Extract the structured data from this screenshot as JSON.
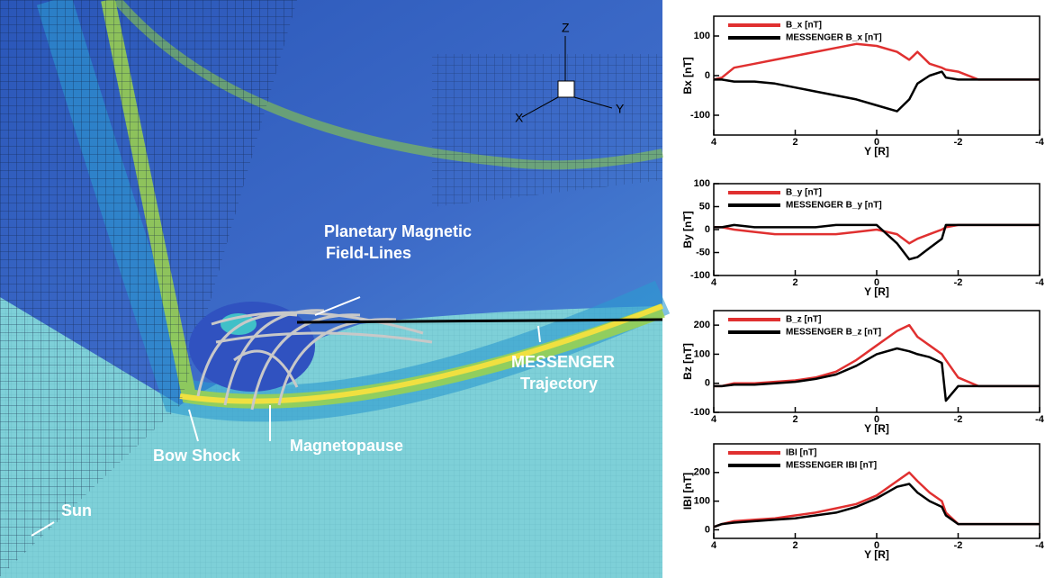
{
  "illustration": {
    "labels": [
      "Planetary Magnetic",
      "Field-Lines",
      "MESSENGER",
      "Trajectory",
      "Bow Shock",
      "Magnetopause",
      "Sun",
      "Z",
      "X",
      "Y"
    ]
  },
  "chart_data": [
    {
      "type": "line",
      "xlabel": "Y [R]",
      "ylabel": "Bx [nT]",
      "legend": "upper left",
      "x": [
        4,
        3.8,
        3.5,
        3,
        2.5,
        2,
        1.5,
        1,
        0.5,
        0,
        -0.5,
        -0.8,
        -1,
        -1.3,
        -1.6,
        -1.7,
        -2,
        -2.5,
        -3,
        -4
      ],
      "xlim": [
        4,
        -4
      ],
      "xticks": [
        4,
        2,
        0,
        -2,
        -4
      ],
      "ylim": [
        -150,
        150
      ],
      "yticks": [
        100,
        0,
        -100
      ],
      "series": [
        {
          "name": "B_x [nT]",
          "color": "#e03030",
          "values": [
            -10,
            -5,
            20,
            30,
            40,
            50,
            60,
            70,
            80,
            75,
            60,
            40,
            60,
            30,
            20,
            15,
            10,
            -10,
            -10,
            -10
          ]
        },
        {
          "name": "MESSENGER B_x [nT]",
          "color": "#000000",
          "values": [
            -10,
            -10,
            -15,
            -15,
            -20,
            -30,
            -40,
            -50,
            -60,
            -75,
            -90,
            -60,
            -20,
            0,
            10,
            -5,
            -10,
            -10,
            -10,
            -10
          ]
        }
      ]
    },
    {
      "type": "line",
      "xlabel": "Y [R]",
      "ylabel": "By [nT]",
      "legend": "upper left",
      "x": [
        4,
        3.8,
        3.5,
        3,
        2.5,
        2,
        1.5,
        1,
        0.5,
        0,
        -0.5,
        -0.8,
        -1,
        -1.3,
        -1.6,
        -1.7,
        -2,
        -2.5,
        -3,
        -4
      ],
      "xlim": [
        4,
        -4
      ],
      "xticks": [
        4,
        2,
        0,
        -2,
        -4
      ],
      "ylim": [
        -100,
        100
      ],
      "yticks": [
        100,
        50,
        0,
        -50,
        -100
      ],
      "series": [
        {
          "name": "B_y [nT]",
          "color": "#e03030",
          "values": [
            5,
            5,
            0,
            -5,
            -10,
            -10,
            -10,
            -10,
            -5,
            0,
            -10,
            -30,
            -20,
            -10,
            0,
            5,
            10,
            10,
            10,
            10
          ]
        },
        {
          "name": "MESSENGER B_y [nT]",
          "color": "#000000",
          "values": [
            5,
            5,
            10,
            5,
            5,
            5,
            5,
            10,
            10,
            10,
            -30,
            -65,
            -60,
            -40,
            -20,
            10,
            10,
            10,
            10,
            10
          ]
        }
      ]
    },
    {
      "type": "line",
      "xlabel": "Y [R]",
      "ylabel": "Bz [nT]",
      "legend": "upper left",
      "x": [
        4,
        3.8,
        3.5,
        3,
        2.5,
        2,
        1.5,
        1,
        0.5,
        0,
        -0.5,
        -0.8,
        -1,
        -1.3,
        -1.6,
        -1.7,
        -2,
        -2.5,
        -3,
        -4
      ],
      "xlim": [
        4,
        -4
      ],
      "xticks": [
        4,
        2,
        0,
        -2,
        -4
      ],
      "ylim": [
        -100,
        250
      ],
      "yticks": [
        200,
        100,
        0,
        -100
      ],
      "series": [
        {
          "name": "B_z [nT]",
          "color": "#e03030",
          "values": [
            -10,
            -10,
            0,
            0,
            5,
            10,
            20,
            40,
            80,
            130,
            180,
            200,
            160,
            130,
            100,
            80,
            20,
            -10,
            -10,
            -10
          ]
        },
        {
          "name": "MESSENGER B_z [nT]",
          "color": "#000000",
          "values": [
            -10,
            -10,
            -5,
            -5,
            0,
            5,
            15,
            30,
            60,
            100,
            120,
            110,
            100,
            90,
            70,
            -60,
            -10,
            -10,
            -10,
            -10
          ]
        }
      ]
    },
    {
      "type": "line",
      "xlabel": "Y [R]",
      "ylabel": "IBI [nT]",
      "legend": "upper left",
      "x": [
        4,
        3.8,
        3.5,
        3,
        2.5,
        2,
        1.5,
        1,
        0.5,
        0,
        -0.5,
        -0.8,
        -1,
        -1.3,
        -1.6,
        -1.7,
        -2,
        -2.5,
        -3,
        -4
      ],
      "xlim": [
        4,
        -4
      ],
      "xticks": [
        4,
        2,
        0,
        -2,
        -4
      ],
      "ylim": [
        -30,
        300
      ],
      "yticks": [
        200,
        100,
        0
      ],
      "series": [
        {
          "name": "IBI [nT]",
          "color": "#e03030",
          "values": [
            10,
            20,
            30,
            35,
            40,
            50,
            60,
            75,
            90,
            120,
            170,
            200,
            170,
            130,
            100,
            60,
            20,
            20,
            20,
            20
          ]
        },
        {
          "name": "MESSENGER IBI [nT]",
          "color": "#000000",
          "values": [
            10,
            20,
            25,
            30,
            35,
            40,
            50,
            60,
            80,
            110,
            150,
            160,
            130,
            100,
            80,
            50,
            20,
            20,
            20,
            20
          ]
        }
      ]
    }
  ]
}
